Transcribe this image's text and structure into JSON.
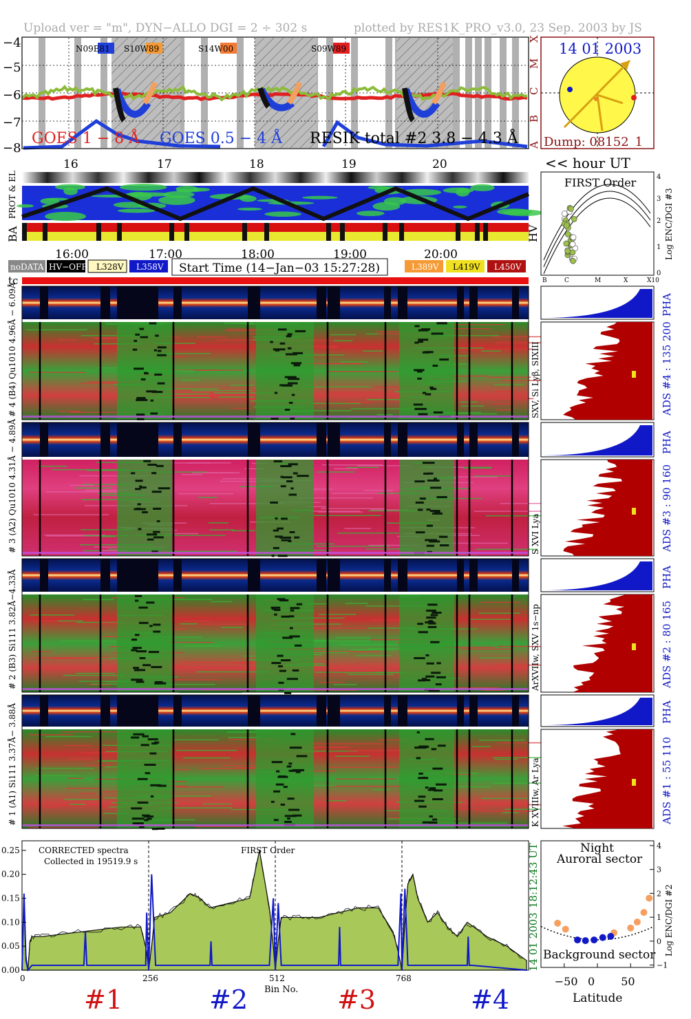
{
  "header": {
    "upload": "Upload ver = \"m\", DYN−ALLO DGI =   2 ÷ 302 s",
    "plotted": "plotted by RES1K_PRO_v3.0, 23 Sep. 2003 by JS"
  },
  "goes": {
    "yticks": [
      "−4",
      "−5",
      "−6",
      "−7",
      "−8"
    ],
    "flare_classes": [
      "X",
      "M",
      "C",
      "B",
      "A"
    ],
    "regions": [
      "N09E81",
      "S10W89",
      "S14W00",
      "S09W89"
    ],
    "region_colors": [
      "#1f3fd9",
      "#f59a34",
      "#f57a34",
      "#e02020"
    ],
    "legend_goes1": "GOES 1 − 8 Å",
    "legend_goes2": "GOES 0.5 − 4 Å",
    "legend_resik": "RESIK total #2  3.8 − 4.3 Å",
    "hour_ticks": [
      "16",
      "17",
      "18",
      "19",
      "20"
    ],
    "hour_label": "<< hour UT"
  },
  "sun": {
    "date": "14 01 2003",
    "dump": "Dump: 08152_1"
  },
  "status": {
    "prot_el": "PROT & EL",
    "ba": "BA",
    "hv": "HV",
    "time_ticks": [
      "16:00",
      "17:00",
      "18:00",
      "19:00",
      "20:00"
    ]
  },
  "legend": {
    "nodata": "noDATA",
    "hvoff": "HV−OFF",
    "l328": "L328V",
    "l358": "L358V",
    "start_time": "Start Time (14−Jan−03 15:27:28)",
    "l389": "L389V",
    "l419": "L419V",
    "l450": "L450V"
  },
  "first_order": {
    "title": "FIRST Order",
    "ylabel": "Log ENC/DGI #3",
    "yticks": [
      "4",
      "3",
      "2",
      "1",
      "0"
    ],
    "xticks": [
      "B",
      "C",
      "M",
      "X",
      "X10"
    ]
  },
  "tc_label": "tc",
  "channels": [
    {
      "pha": "# 4 (B4) Qu1010 4.96Å − 6.09Å",
      "spec_side": "SXV, Si Lyβ, SIXIII",
      "ads": "ADS #4 :  135 200"
    },
    {
      "pha": "# 3 (A2) Qu1010 4.31Å − 4.89Å",
      "spec_side": "S XVI Lya",
      "ads": "ADS #3 :  90 160"
    },
    {
      "pha": "# 2 (B3) Si111 3.82Å−4.33Å",
      "spec_side": "ArXVIIw, SXV 1s−np",
      "ads": "ADS #2 :  80 165"
    },
    {
      "pha": "# 1 (A1) Si111 3.37Å− 3.88Å",
      "spec_side": "K XVIIIw, Ar Lya",
      "ads": "ADS #1 :  55 110"
    }
  ],
  "pha_label": "PHA",
  "bottom": {
    "note1": "CORRECTED spectra",
    "note2": "Collected in 19519.9 s",
    "first_order": "FIRST Order",
    "yticks": [
      "0.25",
      "0.20",
      "0.15",
      "0.10",
      "0.05",
      "0.00"
    ],
    "xticks": [
      "0",
      "256",
      "512",
      "768"
    ],
    "xlabel": "Bin No.",
    "side_time": "18:12:43 UT",
    "side_date": "14 01 2003",
    "channel_labels": [
      "#1",
      "#2",
      "#3",
      "#4"
    ],
    "channel_colors": [
      "#d01010",
      "#1018c8",
      "#d01010",
      "#1018c8"
    ]
  },
  "latplot": {
    "night": "Night",
    "auroral": "Auroral sector",
    "background": "Background sector",
    "ylabel": "Log ENC/DGI #2",
    "yticks": [
      "4",
      "3",
      "2",
      "1",
      "0",
      "−1"
    ],
    "xticks": [
      "−50",
      "0",
      "50"
    ],
    "xlabel": "Latitude",
    "points_orange": [
      [
        -60,
        0.75
      ],
      [
        -48,
        0.5
      ],
      [
        25,
        0.35
      ],
      [
        50,
        0.55
      ],
      [
        60,
        0.8
      ],
      [
        70,
        1.2
      ],
      [
        78,
        1.8
      ]
    ],
    "points_blue": [
      [
        -30,
        0.05
      ],
      [
        -18,
        0.02
      ],
      [
        -5,
        0.05
      ],
      [
        8,
        0.15
      ],
      [
        20,
        0.2
      ]
    ]
  },
  "chart_data": {
    "type": "line",
    "title": "",
    "xlabel": "Bin No.",
    "ylabel": "",
    "xlim": [
      0,
      1024
    ],
    "ylim": [
      0,
      0.27
    ],
    "series": [
      {
        "name": "",
        "x": [
          0,
          4,
          8,
          12,
          16,
          20,
          40,
          80,
          120,
          160,
          200,
          240,
          252,
          256,
          262,
          268,
          300,
          340,
          360,
          380,
          420,
          460,
          480,
          500,
          508,
          512,
          518,
          524,
          560,
          600,
          640,
          680,
          720,
          750,
          760,
          768,
          774,
          780,
          790,
          800,
          820,
          840,
          860,
          880,
          900,
          940,
          980,
          1020
        ],
        "values": [
          0.0,
          0.15,
          0.03,
          0.0,
          0.06,
          0.07,
          0.07,
          0.075,
          0.08,
          0.085,
          0.09,
          0.09,
          0.04,
          0.0,
          0.05,
          0.11,
          0.12,
          0.16,
          0.15,
          0.13,
          0.14,
          0.15,
          0.25,
          0.13,
          0.05,
          0.0,
          0.06,
          0.11,
          0.11,
          0.11,
          0.12,
          0.13,
          0.13,
          0.08,
          0.04,
          0.0,
          0.1,
          0.18,
          0.2,
          0.15,
          0.1,
          0.12,
          0.09,
          0.07,
          0.1,
          0.07,
          0.05,
          0.02
        ]
      },
      {
        "name": "",
        "x": [
          0,
          4,
          8,
          12,
          20,
          100,
          125,
          128,
          131,
          200,
          250,
          252,
          256,
          262,
          270,
          380,
          382,
          384,
          390,
          480,
          500,
          508,
          512,
          518,
          524,
          640,
          642,
          644,
          650,
          760,
          766,
          768,
          774,
          780,
          900,
          902,
          904,
          910,
          1020
        ],
        "values": [
          0.0,
          0.16,
          0.02,
          0.0,
          0.01,
          0.01,
          0.01,
          0.08,
          0.01,
          0.01,
          0.01,
          0.12,
          0.0,
          0.2,
          0.01,
          0.01,
          0.06,
          0.01,
          0.01,
          0.01,
          0.01,
          0.15,
          0.0,
          0.14,
          0.01,
          0.01,
          0.09,
          0.01,
          0.01,
          0.01,
          0.16,
          0.0,
          0.17,
          0.01,
          0.01,
          0.07,
          0.01,
          0.01,
          0.0
        ]
      }
    ]
  }
}
